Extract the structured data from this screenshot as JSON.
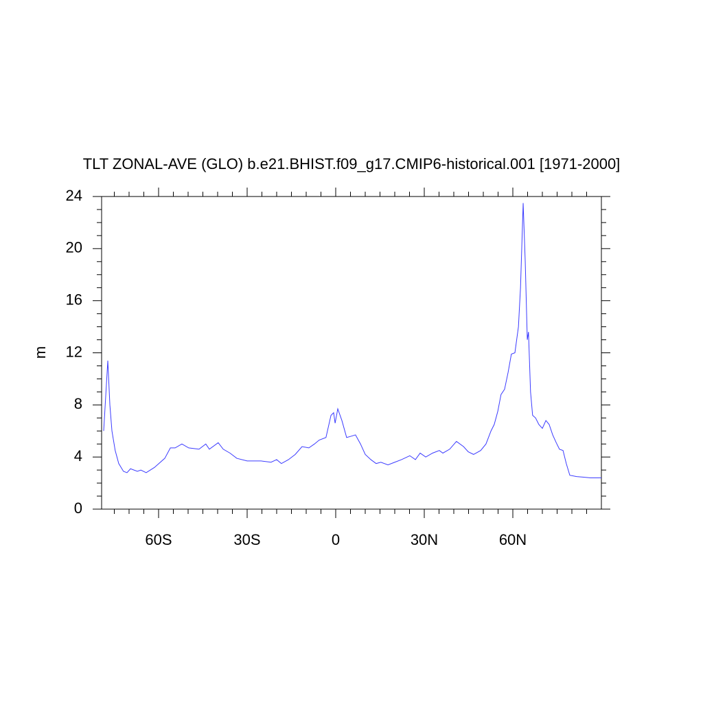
{
  "chart_data": {
    "type": "line",
    "title": "TLT ZONAL-AVE (GLO) b.e21.BHIST.f09_g17.CMIP6-historical.001 [1971-2000]",
    "y_label": "m",
    "x": [
      -78.6,
      -77.2,
      -76.5,
      -75.8,
      -74.7,
      -73.5,
      -71.9,
      -70.7,
      -69.5,
      -67.2,
      -66,
      -64.2,
      -61.4,
      -57.9,
      -56,
      -54.4,
      -52.1,
      -49.8,
      -46.3,
      -44,
      -42.8,
      -39.8,
      -38.1,
      -35.8,
      -33.5,
      -30,
      -25.3,
      -21.9,
      -20,
      -18.4,
      -16,
      -13.7,
      -11.4,
      -9.1,
      -7.2,
      -5.6,
      -3.3,
      -1.6,
      -0.7,
      -0.2,
      0.7,
      2.1,
      3.7,
      5.3,
      6.7,
      8.4,
      10,
      11.9,
      13.7,
      15.3,
      17.7,
      20,
      22.3,
      25.1,
      27,
      28.6,
      30.5,
      32.8,
      35.1,
      36.3,
      38.6,
      40.9,
      43.3,
      44.9,
      46.7,
      49.1,
      50.9,
      52.6,
      53.7,
      54.9,
      56,
      57.2,
      58.4,
      59.5,
      60.7,
      61.9,
      62.6,
      63.5,
      64.2,
      64.9,
      65.3,
      66,
      66.7,
      67.7,
      68.8,
      70,
      71.2,
      72.3,
      73.5,
      74.7,
      75.8,
      77,
      78.1,
      79.3,
      81.6,
      84,
      86.3,
      90
    ],
    "series": [
      {
        "color": "#3a3aff",
        "values": [
          6,
          11.4,
          8,
          6,
          4.5,
          3.5,
          2.9,
          2.8,
          3.1,
          2.9,
          3.0,
          2.8,
          3.2,
          3.9,
          4.7,
          4.7,
          5.0,
          4.7,
          4.6,
          5.0,
          4.6,
          5.1,
          4.6,
          4.3,
          3.9,
          3.7,
          3.7,
          3.6,
          3.8,
          3.5,
          3.8,
          4.2,
          4.8,
          4.7,
          5.0,
          5.3,
          5.5,
          7.2,
          7.4,
          6.6,
          7.7,
          6.8,
          5.5,
          5.6,
          5.7,
          5.0,
          4.2,
          3.8,
          3.5,
          3.6,
          3.4,
          3.6,
          3.8,
          4.1,
          3.8,
          4.3,
          4.0,
          4.3,
          4.5,
          4.3,
          4.6,
          5.2,
          4.8,
          4.4,
          4.2,
          4.5,
          5.0,
          6.0,
          6.5,
          7.5,
          8.8,
          9.2,
          10.5,
          11.9,
          12.0,
          14.0,
          17,
          23.5,
          19,
          13,
          13.6,
          9,
          7.2,
          7.0,
          6.5,
          6.2,
          6.8,
          6.5,
          5.7,
          5.1,
          4.6,
          4.5,
          3.5,
          2.6,
          2.5,
          2.45,
          2.4,
          2.4
        ]
      }
    ],
    "xlim": [
      -79.3,
      90
    ],
    "xticks": [
      {
        "value": -60,
        "label": "60S"
      },
      {
        "value": -30,
        "label": "30S"
      },
      0,
      {
        "value": 30,
        "label": "30N"
      },
      {
        "value": 60,
        "label": "60N"
      }
    ],
    "xminorticks": [
      -75,
      -70,
      -65,
      -55,
      -50,
      -45,
      -40,
      -35,
      -25,
      -20,
      -15,
      -10,
      -5,
      5,
      10,
      15,
      20,
      25,
      35,
      40,
      45,
      50,
      55,
      65,
      70,
      75,
      80,
      85
    ],
    "ylim": [
      0,
      24
    ],
    "yticks": [
      0,
      4,
      8,
      12,
      16,
      20,
      24
    ],
    "yminorticks": [
      1,
      2,
      3,
      5,
      6,
      7,
      9,
      10,
      11,
      13,
      14,
      15,
      17,
      18,
      19,
      21,
      22,
      23
    ]
  }
}
